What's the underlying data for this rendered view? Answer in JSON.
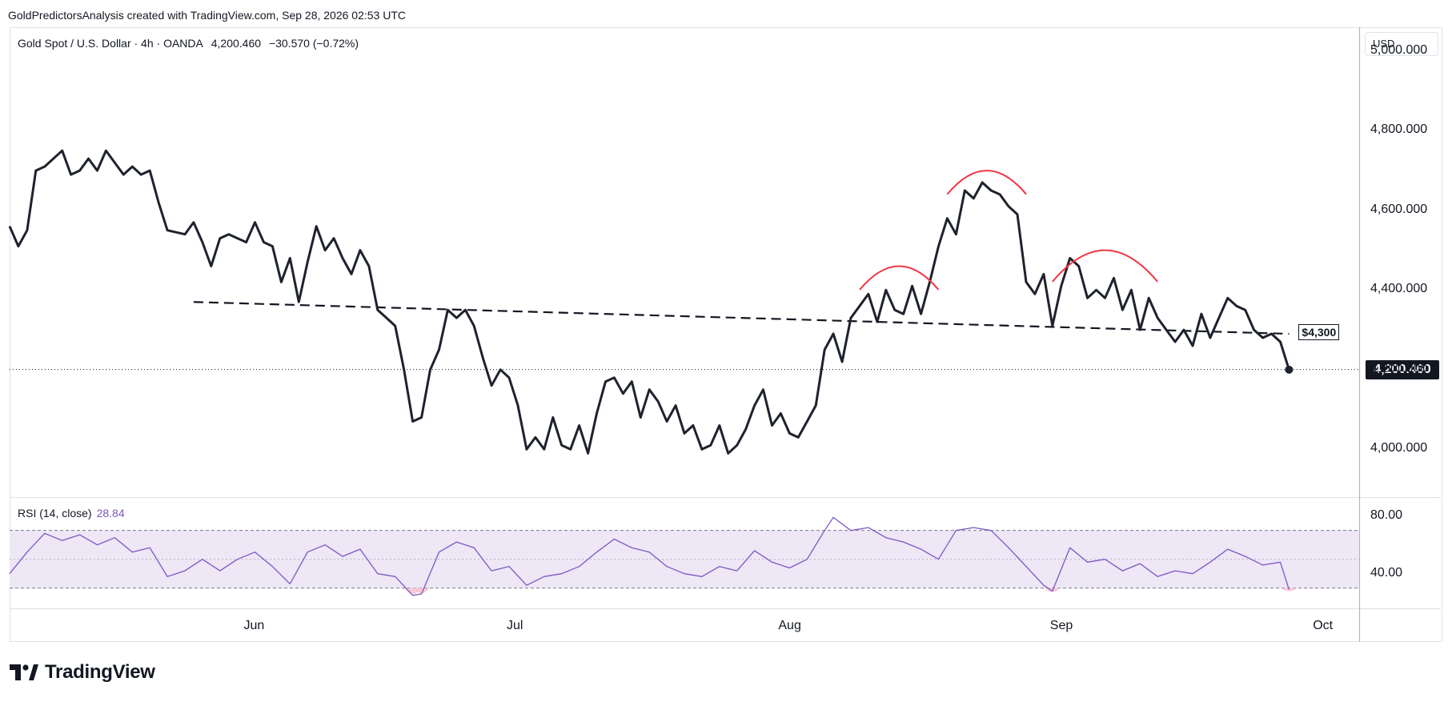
{
  "header": {
    "attribution": "GoldPredictorsAnalysis created with TradingView.com, Sep 28, 2026 02:53 UTC"
  },
  "legend": {
    "symbol": "Gold Spot / U.S. Dollar · 4h · OANDA",
    "last": "4,200.460",
    "change": "−30.570 (−0.72%)"
  },
  "currency_button": "USD",
  "rsi": {
    "label": "RSI (14, close)",
    "value": "28.84"
  },
  "price_tag": "4,200.460",
  "level_tag": "$4,300",
  "brand": "TradingView",
  "colors": {
    "price_line": "#1e222d",
    "annotation": "#f23645",
    "rsi_line": "#7e57c2",
    "rsi_band": "#ede7f6",
    "oversold_fill": "#f7c5cf"
  },
  "chart_data": [
    {
      "type": "line",
      "title": "Gold Spot / U.S. Dollar · 4h · OANDA",
      "x_ticks": [
        "Jun",
        "Jul",
        "Aug",
        "Sep",
        "Oct"
      ],
      "y_ticks": [
        "4,000.000",
        "4,200.000",
        "4,400.000",
        "4,600.000",
        "4,800.000",
        "5,000.000"
      ],
      "ylim": [
        3880,
        5060
      ],
      "xlim": [
        "2026-05-04",
        "2026-10-05"
      ],
      "series": [
        {
          "values_by_date": [
            [
              "2026-05-04",
              4560
            ],
            [
              "2026-05-05",
              4510
            ],
            [
              "2026-05-06",
              4550
            ],
            [
              "2026-05-07",
              4700
            ],
            [
              "2026-05-08",
              4710
            ],
            [
              "2026-05-10",
              4750
            ],
            [
              "2026-05-11",
              4690
            ],
            [
              "2026-05-12",
              4700
            ],
            [
              "2026-05-13",
              4730
            ],
            [
              "2026-05-14",
              4700
            ],
            [
              "2026-05-15",
              4750
            ],
            [
              "2026-05-17",
              4690
            ],
            [
              "2026-05-18",
              4710
            ],
            [
              "2026-05-19",
              4690
            ],
            [
              "2026-05-20",
              4700
            ],
            [
              "2026-05-21",
              4620
            ],
            [
              "2026-05-22",
              4550
            ],
            [
              "2026-05-24",
              4540
            ],
            [
              "2026-05-25",
              4570
            ],
            [
              "2026-05-26",
              4520
            ],
            [
              "2026-05-27",
              4460
            ],
            [
              "2026-05-28",
              4530
            ],
            [
              "2026-05-29",
              4540
            ],
            [
              "2026-05-31",
              4520
            ],
            [
              "2026-06-01",
              4570
            ],
            [
              "2026-06-02",
              4520
            ],
            [
              "2026-06-03",
              4510
            ],
            [
              "2026-06-04",
              4420
            ],
            [
              "2026-06-05",
              4480
            ],
            [
              "2026-06-06",
              4370
            ],
            [
              "2026-06-07",
              4470
            ],
            [
              "2026-06-08",
              4560
            ],
            [
              "2026-06-09",
              4500
            ],
            [
              "2026-06-10",
              4530
            ],
            [
              "2026-06-11",
              4480
            ],
            [
              "2026-06-12",
              4440
            ],
            [
              "2026-06-13",
              4500
            ],
            [
              "2026-06-14",
              4460
            ],
            [
              "2026-06-15",
              4350
            ],
            [
              "2026-06-16",
              4330
            ],
            [
              "2026-06-17",
              4310
            ],
            [
              "2026-06-18",
              4200
            ],
            [
              "2026-06-19",
              4070
            ],
            [
              "2026-06-20",
              4080
            ],
            [
              "2026-06-21",
              4200
            ],
            [
              "2026-06-22",
              4250
            ],
            [
              "2026-06-23",
              4350
            ],
            [
              "2026-06-24",
              4330
            ],
            [
              "2026-06-25",
              4350
            ],
            [
              "2026-06-26",
              4310
            ],
            [
              "2026-06-27",
              4230
            ],
            [
              "2026-06-28",
              4160
            ],
            [
              "2026-06-29",
              4200
            ],
            [
              "2026-06-30",
              4180
            ],
            [
              "2026-07-01",
              4110
            ],
            [
              "2026-07-02",
              4000
            ],
            [
              "2026-07-03",
              4030
            ],
            [
              "2026-07-04",
              4000
            ],
            [
              "2026-07-05",
              4080
            ],
            [
              "2026-07-06",
              4010
            ],
            [
              "2026-07-07",
              4000
            ],
            [
              "2026-07-08",
              4060
            ],
            [
              "2026-07-09",
              3990
            ],
            [
              "2026-07-10",
              4090
            ],
            [
              "2026-07-11",
              4170
            ],
            [
              "2026-07-12",
              4180
            ],
            [
              "2026-07-13",
              4140
            ],
            [
              "2026-07-14",
              4170
            ],
            [
              "2026-07-15",
              4080
            ],
            [
              "2026-07-16",
              4150
            ],
            [
              "2026-07-17",
              4120
            ],
            [
              "2026-07-18",
              4070
            ],
            [
              "2026-07-19",
              4110
            ],
            [
              "2026-07-20",
              4040
            ],
            [
              "2026-07-21",
              4060
            ],
            [
              "2026-07-22",
              4000
            ],
            [
              "2026-07-23",
              4010
            ],
            [
              "2026-07-24",
              4060
            ],
            [
              "2026-07-25",
              3990
            ],
            [
              "2026-07-26",
              4010
            ],
            [
              "2026-07-27",
              4050
            ],
            [
              "2026-07-28",
              4110
            ],
            [
              "2026-07-29",
              4150
            ],
            [
              "2026-07-30",
              4060
            ],
            [
              "2026-07-31",
              4090
            ],
            [
              "2026-08-01",
              4040
            ],
            [
              "2026-08-02",
              4030
            ],
            [
              "2026-08-03",
              4070
            ],
            [
              "2026-08-04",
              4110
            ],
            [
              "2026-08-05",
              4250
            ],
            [
              "2026-08-06",
              4290
            ],
            [
              "2026-08-07",
              4220
            ],
            [
              "2026-08-08",
              4330
            ],
            [
              "2026-08-09",
              4360
            ],
            [
              "2026-08-10",
              4390
            ],
            [
              "2026-08-11",
              4320
            ],
            [
              "2026-08-12",
              4400
            ],
            [
              "2026-08-13",
              4350
            ],
            [
              "2026-08-14",
              4340
            ],
            [
              "2026-08-15",
              4410
            ],
            [
              "2026-08-16",
              4340
            ],
            [
              "2026-08-17",
              4420
            ],
            [
              "2026-08-18",
              4510
            ],
            [
              "2026-08-19",
              4580
            ],
            [
              "2026-08-20",
              4540
            ],
            [
              "2026-08-21",
              4650
            ],
            [
              "2026-08-22",
              4630
            ],
            [
              "2026-08-23",
              4670
            ],
            [
              "2026-08-24",
              4650
            ],
            [
              "2026-08-25",
              4640
            ],
            [
              "2026-08-26",
              4610
            ],
            [
              "2026-08-27",
              4590
            ],
            [
              "2026-08-28",
              4420
            ],
            [
              "2026-08-29",
              4390
            ],
            [
              "2026-08-30",
              4440
            ],
            [
              "2026-08-31",
              4310
            ],
            [
              "2026-09-01",
              4410
            ],
            [
              "2026-09-02",
              4480
            ],
            [
              "2026-09-03",
              4460
            ],
            [
              "2026-09-04",
              4380
            ],
            [
              "2026-09-05",
              4400
            ],
            [
              "2026-09-06",
              4380
            ],
            [
              "2026-09-07",
              4430
            ],
            [
              "2026-09-08",
              4350
            ],
            [
              "2026-09-09",
              4400
            ],
            [
              "2026-09-10",
              4300
            ],
            [
              "2026-09-11",
              4380
            ],
            [
              "2026-09-12",
              4330
            ],
            [
              "2026-09-13",
              4300
            ],
            [
              "2026-09-14",
              4270
            ],
            [
              "2026-09-15",
              4300
            ],
            [
              "2026-09-16",
              4260
            ],
            [
              "2026-09-17",
              4340
            ],
            [
              "2026-09-18",
              4280
            ],
            [
              "2026-09-19",
              4330
            ],
            [
              "2026-09-20",
              4380
            ],
            [
              "2026-09-21",
              4360
            ],
            [
              "2026-09-22",
              4350
            ],
            [
              "2026-09-23",
              4300
            ],
            [
              "2026-09-24",
              4280
            ],
            [
              "2026-09-25",
              4290
            ],
            [
              "2026-09-26",
              4270
            ],
            [
              "2026-09-27",
              4200
            ]
          ]
        }
      ],
      "reference_lines": {
        "neckline": [
          [
            "2026-05-25",
            4370
          ],
          [
            "2026-09-27",
            4290
          ]
        ],
        "last_price": 4200.46
      },
      "pattern_arcs": [
        {
          "name": "left shoulder",
          "from": "2026-08-09",
          "to": "2026-08-18",
          "peak": 4460
        },
        {
          "name": "head",
          "from": "2026-08-19",
          "to": "2026-08-28",
          "peak": 4700
        },
        {
          "name": "right shoulder",
          "from": "2026-08-31",
          "to": "2026-09-12",
          "peak": 4500
        }
      ]
    },
    {
      "type": "line",
      "title": "RSI (14, close)",
      "y_ticks": [
        "40.00",
        "80.00"
      ],
      "ylim": [
        16,
        92
      ],
      "bands": [
        30,
        50,
        70
      ],
      "series": [
        {
          "values_by_date": [
            [
              "2026-05-04",
              40
            ],
            [
              "2026-05-06",
              55
            ],
            [
              "2026-05-08",
              68
            ],
            [
              "2026-05-10",
              63
            ],
            [
              "2026-05-12",
              67
            ],
            [
              "2026-05-14",
              60
            ],
            [
              "2026-05-16",
              65
            ],
            [
              "2026-05-18",
              55
            ],
            [
              "2026-05-20",
              58
            ],
            [
              "2026-05-22",
              38
            ],
            [
              "2026-05-24",
              42
            ],
            [
              "2026-05-26",
              50
            ],
            [
              "2026-05-28",
              42
            ],
            [
              "2026-05-30",
              50
            ],
            [
              "2026-06-01",
              55
            ],
            [
              "2026-06-03",
              45
            ],
            [
              "2026-06-05",
              33
            ],
            [
              "2026-06-07",
              55
            ],
            [
              "2026-06-09",
              60
            ],
            [
              "2026-06-11",
              52
            ],
            [
              "2026-06-13",
              57
            ],
            [
              "2026-06-15",
              40
            ],
            [
              "2026-06-17",
              38
            ],
            [
              "2026-06-19",
              25
            ],
            [
              "2026-06-20",
              26
            ],
            [
              "2026-06-22",
              55
            ],
            [
              "2026-06-24",
              62
            ],
            [
              "2026-06-26",
              58
            ],
            [
              "2026-06-28",
              42
            ],
            [
              "2026-06-30",
              45
            ],
            [
              "2026-07-02",
              32
            ],
            [
              "2026-07-04",
              38
            ],
            [
              "2026-07-06",
              40
            ],
            [
              "2026-07-08",
              45
            ],
            [
              "2026-07-10",
              55
            ],
            [
              "2026-07-12",
              64
            ],
            [
              "2026-07-14",
              58
            ],
            [
              "2026-07-16",
              55
            ],
            [
              "2026-07-18",
              45
            ],
            [
              "2026-07-20",
              40
            ],
            [
              "2026-07-22",
              38
            ],
            [
              "2026-07-24",
              45
            ],
            [
              "2026-07-26",
              42
            ],
            [
              "2026-07-28",
              56
            ],
            [
              "2026-07-30",
              48
            ],
            [
              "2026-08-01",
              44
            ],
            [
              "2026-08-03",
              50
            ],
            [
              "2026-08-05",
              70
            ],
            [
              "2026-08-06",
              79
            ],
            [
              "2026-08-08",
              70
            ],
            [
              "2026-08-10",
              72
            ],
            [
              "2026-08-12",
              65
            ],
            [
              "2026-08-14",
              62
            ],
            [
              "2026-08-16",
              57
            ],
            [
              "2026-08-18",
              50
            ],
            [
              "2026-08-20",
              70
            ],
            [
              "2026-08-22",
              72
            ],
            [
              "2026-08-24",
              70
            ],
            [
              "2026-08-26",
              58
            ],
            [
              "2026-08-28",
              45
            ],
            [
              "2026-08-30",
              32
            ],
            [
              "2026-08-31",
              28
            ],
            [
              "2026-09-02",
              58
            ],
            [
              "2026-09-04",
              48
            ],
            [
              "2026-09-06",
              50
            ],
            [
              "2026-09-08",
              42
            ],
            [
              "2026-09-10",
              47
            ],
            [
              "2026-09-12",
              38
            ],
            [
              "2026-09-14",
              42
            ],
            [
              "2026-09-16",
              40
            ],
            [
              "2026-09-18",
              48
            ],
            [
              "2026-09-20",
              57
            ],
            [
              "2026-09-22",
              52
            ],
            [
              "2026-09-24",
              46
            ],
            [
              "2026-09-26",
              48
            ],
            [
              "2026-09-27",
              29
            ]
          ]
        }
      ]
    }
  ]
}
